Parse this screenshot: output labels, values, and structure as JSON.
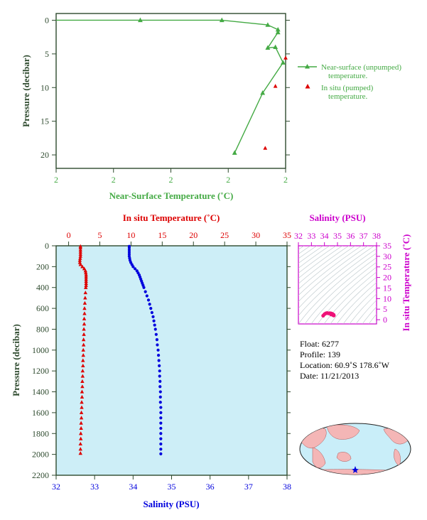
{
  "colors": {
    "green": "#44aa44",
    "red": "#dd0000",
    "blue": "#0000dd",
    "magenta": "#cc00cc",
    "axis": "#2e4a2e",
    "panel_fill": "#cdeef7",
    "land": "#f4b6b6",
    "ocean": "#c9eef9"
  },
  "info": {
    "float": "Float:  6277",
    "profile": "Profile:  139",
    "location": "Location:  60.9˚S  178.6˚W",
    "date": "Date:  11/21/2013"
  },
  "chart_data": [
    {
      "type": "line",
      "title": "",
      "xlabel": "Near-Surface Temperature (˚C)",
      "ylabel": "Pressure (decibar)",
      "x_ticks": [
        "2",
        "2",
        "2",
        "2",
        "2"
      ],
      "xlim": [
        1.7,
        2.6
      ],
      "ylim": [
        22,
        -1
      ],
      "y_ticks": [
        0,
        5,
        10,
        15,
        20
      ],
      "legend": [
        "Near-surface (unpumped) temperature.",
        "In situ (pumped) temperature."
      ],
      "legend_position": "right",
      "series": [
        {
          "name": "Near-surface (unpumped) temperature.",
          "marker": "triangle",
          "points": [
            [
              1.7,
              0.0
            ],
            [
              2.03,
              0.0
            ],
            [
              2.35,
              0.0
            ],
            [
              2.53,
              0.7
            ],
            [
              2.57,
              1.4
            ],
            [
              2.57,
              1.8
            ],
            [
              2.53,
              4.1
            ],
            [
              2.56,
              4.0
            ],
            [
              2.59,
              6.3
            ],
            [
              2.51,
              10.8
            ],
            [
              2.4,
              19.7
            ]
          ]
        },
        {
          "name": "In situ (pumped) temperature.",
          "marker": "triangle",
          "points": [
            [
              2.6,
              5.6
            ],
            [
              2.56,
              9.8
            ],
            [
              2.52,
              19.0
            ]
          ]
        }
      ]
    },
    {
      "type": "scatter",
      "title": "",
      "xlabel": "Salinity (PSU)",
      "x2label": "In situ Temperature (˚C)",
      "ylabel": "Pressure (decibar)",
      "xlim": [
        32,
        38
      ],
      "x2lim": [
        -2,
        35
      ],
      "ylim": [
        2200,
        0
      ],
      "x_ticks": [
        32,
        33,
        34,
        35,
        36,
        37,
        38
      ],
      "x2_ticks": [
        0,
        5,
        10,
        15,
        20,
        25,
        30,
        35
      ],
      "y_ticks": [
        0,
        200,
        400,
        600,
        800,
        1000,
        1200,
        1400,
        1600,
        1800,
        2000,
        2200
      ],
      "series": [
        {
          "name": "",
          "marker": "triangle",
          "axis": "temperature",
          "points": [
            [
              1.9,
              5
            ],
            [
              1.9,
              20
            ],
            [
              1.9,
              40
            ],
            [
              1.9,
              60
            ],
            [
              1.9,
              80
            ],
            [
              1.9,
              100
            ],
            [
              1.85,
              120
            ],
            [
              1.8,
              140
            ],
            [
              1.8,
              160
            ],
            [
              1.9,
              180
            ],
            [
              2.2,
              200
            ],
            [
              2.5,
              220
            ],
            [
              2.7,
              240
            ],
            [
              2.75,
              260
            ],
            [
              2.8,
              280
            ],
            [
              2.8,
              300
            ],
            [
              2.8,
              320
            ],
            [
              2.8,
              340
            ],
            [
              2.8,
              360
            ],
            [
              2.8,
              380
            ],
            [
              2.75,
              400
            ],
            [
              2.7,
              450
            ],
            [
              2.65,
              500
            ],
            [
              2.6,
              550
            ],
            [
              2.55,
              600
            ],
            [
              2.55,
              650
            ],
            [
              2.5,
              700
            ],
            [
              2.5,
              750
            ],
            [
              2.45,
              800
            ],
            [
              2.45,
              850
            ],
            [
              2.4,
              900
            ],
            [
              2.4,
              950
            ],
            [
              2.35,
              1000
            ],
            [
              2.35,
              1050
            ],
            [
              2.3,
              1100
            ],
            [
              2.3,
              1150
            ],
            [
              2.25,
              1200
            ],
            [
              2.25,
              1250
            ],
            [
              2.2,
              1300
            ],
            [
              2.2,
              1350
            ],
            [
              2.15,
              1400
            ],
            [
              2.15,
              1450
            ],
            [
              2.1,
              1500
            ],
            [
              2.1,
              1550
            ],
            [
              2.05,
              1600
            ],
            [
              2.05,
              1650
            ],
            [
              2.0,
              1700
            ],
            [
              2.0,
              1750
            ],
            [
              1.95,
              1800
            ],
            [
              1.95,
              1850
            ],
            [
              1.9,
              1900
            ],
            [
              1.9,
              1950
            ],
            [
              1.9,
              1990
            ]
          ]
        },
        {
          "name": "",
          "marker": "circle",
          "axis": "salinity",
          "points": [
            [
              33.9,
              5
            ],
            [
              33.9,
              20
            ],
            [
              33.9,
              40
            ],
            [
              33.9,
              60
            ],
            [
              33.9,
              80
            ],
            [
              33.9,
              100
            ],
            [
              33.91,
              120
            ],
            [
              33.92,
              140
            ],
            [
              33.94,
              160
            ],
            [
              33.97,
              180
            ],
            [
              34.0,
              200
            ],
            [
              34.05,
              220
            ],
            [
              34.1,
              240
            ],
            [
              34.13,
              260
            ],
            [
              34.16,
              280
            ],
            [
              34.18,
              300
            ],
            [
              34.2,
              320
            ],
            [
              34.22,
              340
            ],
            [
              34.24,
              360
            ],
            [
              34.26,
              380
            ],
            [
              34.28,
              400
            ],
            [
              34.32,
              440
            ],
            [
              34.36,
              480
            ],
            [
              34.4,
              520
            ],
            [
              34.43,
              560
            ],
            [
              34.46,
              600
            ],
            [
              34.49,
              640
            ],
            [
              34.52,
              680
            ],
            [
              34.54,
              720
            ],
            [
              34.56,
              760
            ],
            [
              34.58,
              800
            ],
            [
              34.6,
              850
            ],
            [
              34.62,
              900
            ],
            [
              34.63,
              950
            ],
            [
              34.65,
              1000
            ],
            [
              34.66,
              1050
            ],
            [
              34.67,
              1100
            ],
            [
              34.68,
              1150
            ],
            [
              34.69,
              1200
            ],
            [
              34.69,
              1250
            ],
            [
              34.7,
              1300
            ],
            [
              34.7,
              1350
            ],
            [
              34.71,
              1400
            ],
            [
              34.71,
              1450
            ],
            [
              34.71,
              1500
            ],
            [
              34.72,
              1550
            ],
            [
              34.72,
              1600
            ],
            [
              34.72,
              1650
            ],
            [
              34.72,
              1700
            ],
            [
              34.72,
              1750
            ],
            [
              34.72,
              1800
            ],
            [
              34.72,
              1850
            ],
            [
              34.72,
              1900
            ],
            [
              34.72,
              1950
            ],
            [
              34.72,
              1995
            ]
          ]
        }
      ]
    },
    {
      "type": "scatter",
      "title": "",
      "xlabel": "Salinity (PSU)",
      "ylabel": "In situ Temperature (˚C)",
      "xlim": [
        32,
        38
      ],
      "ylim": [
        -2,
        35
      ],
      "x_ticks": [
        32,
        33,
        34,
        35,
        36,
        37,
        38
      ],
      "y_ticks": [
        0,
        5,
        10,
        15,
        20,
        25,
        30,
        35
      ],
      "series": [
        {
          "name": "",
          "marker": "circle",
          "points": [
            [
              34.0,
              2.6
            ],
            [
              34.1,
              3.0
            ],
            [
              34.2,
              3.2
            ],
            [
              34.3,
              3.0
            ],
            [
              34.4,
              3.1
            ],
            [
              34.5,
              3.0
            ],
            [
              34.6,
              2.8
            ],
            [
              34.7,
              2.4
            ],
            [
              34.72,
              2.0
            ],
            [
              33.9,
              1.9
            ],
            [
              34.5,
              2.5
            ],
            [
              34.65,
              2.2
            ]
          ]
        }
      ]
    }
  ]
}
